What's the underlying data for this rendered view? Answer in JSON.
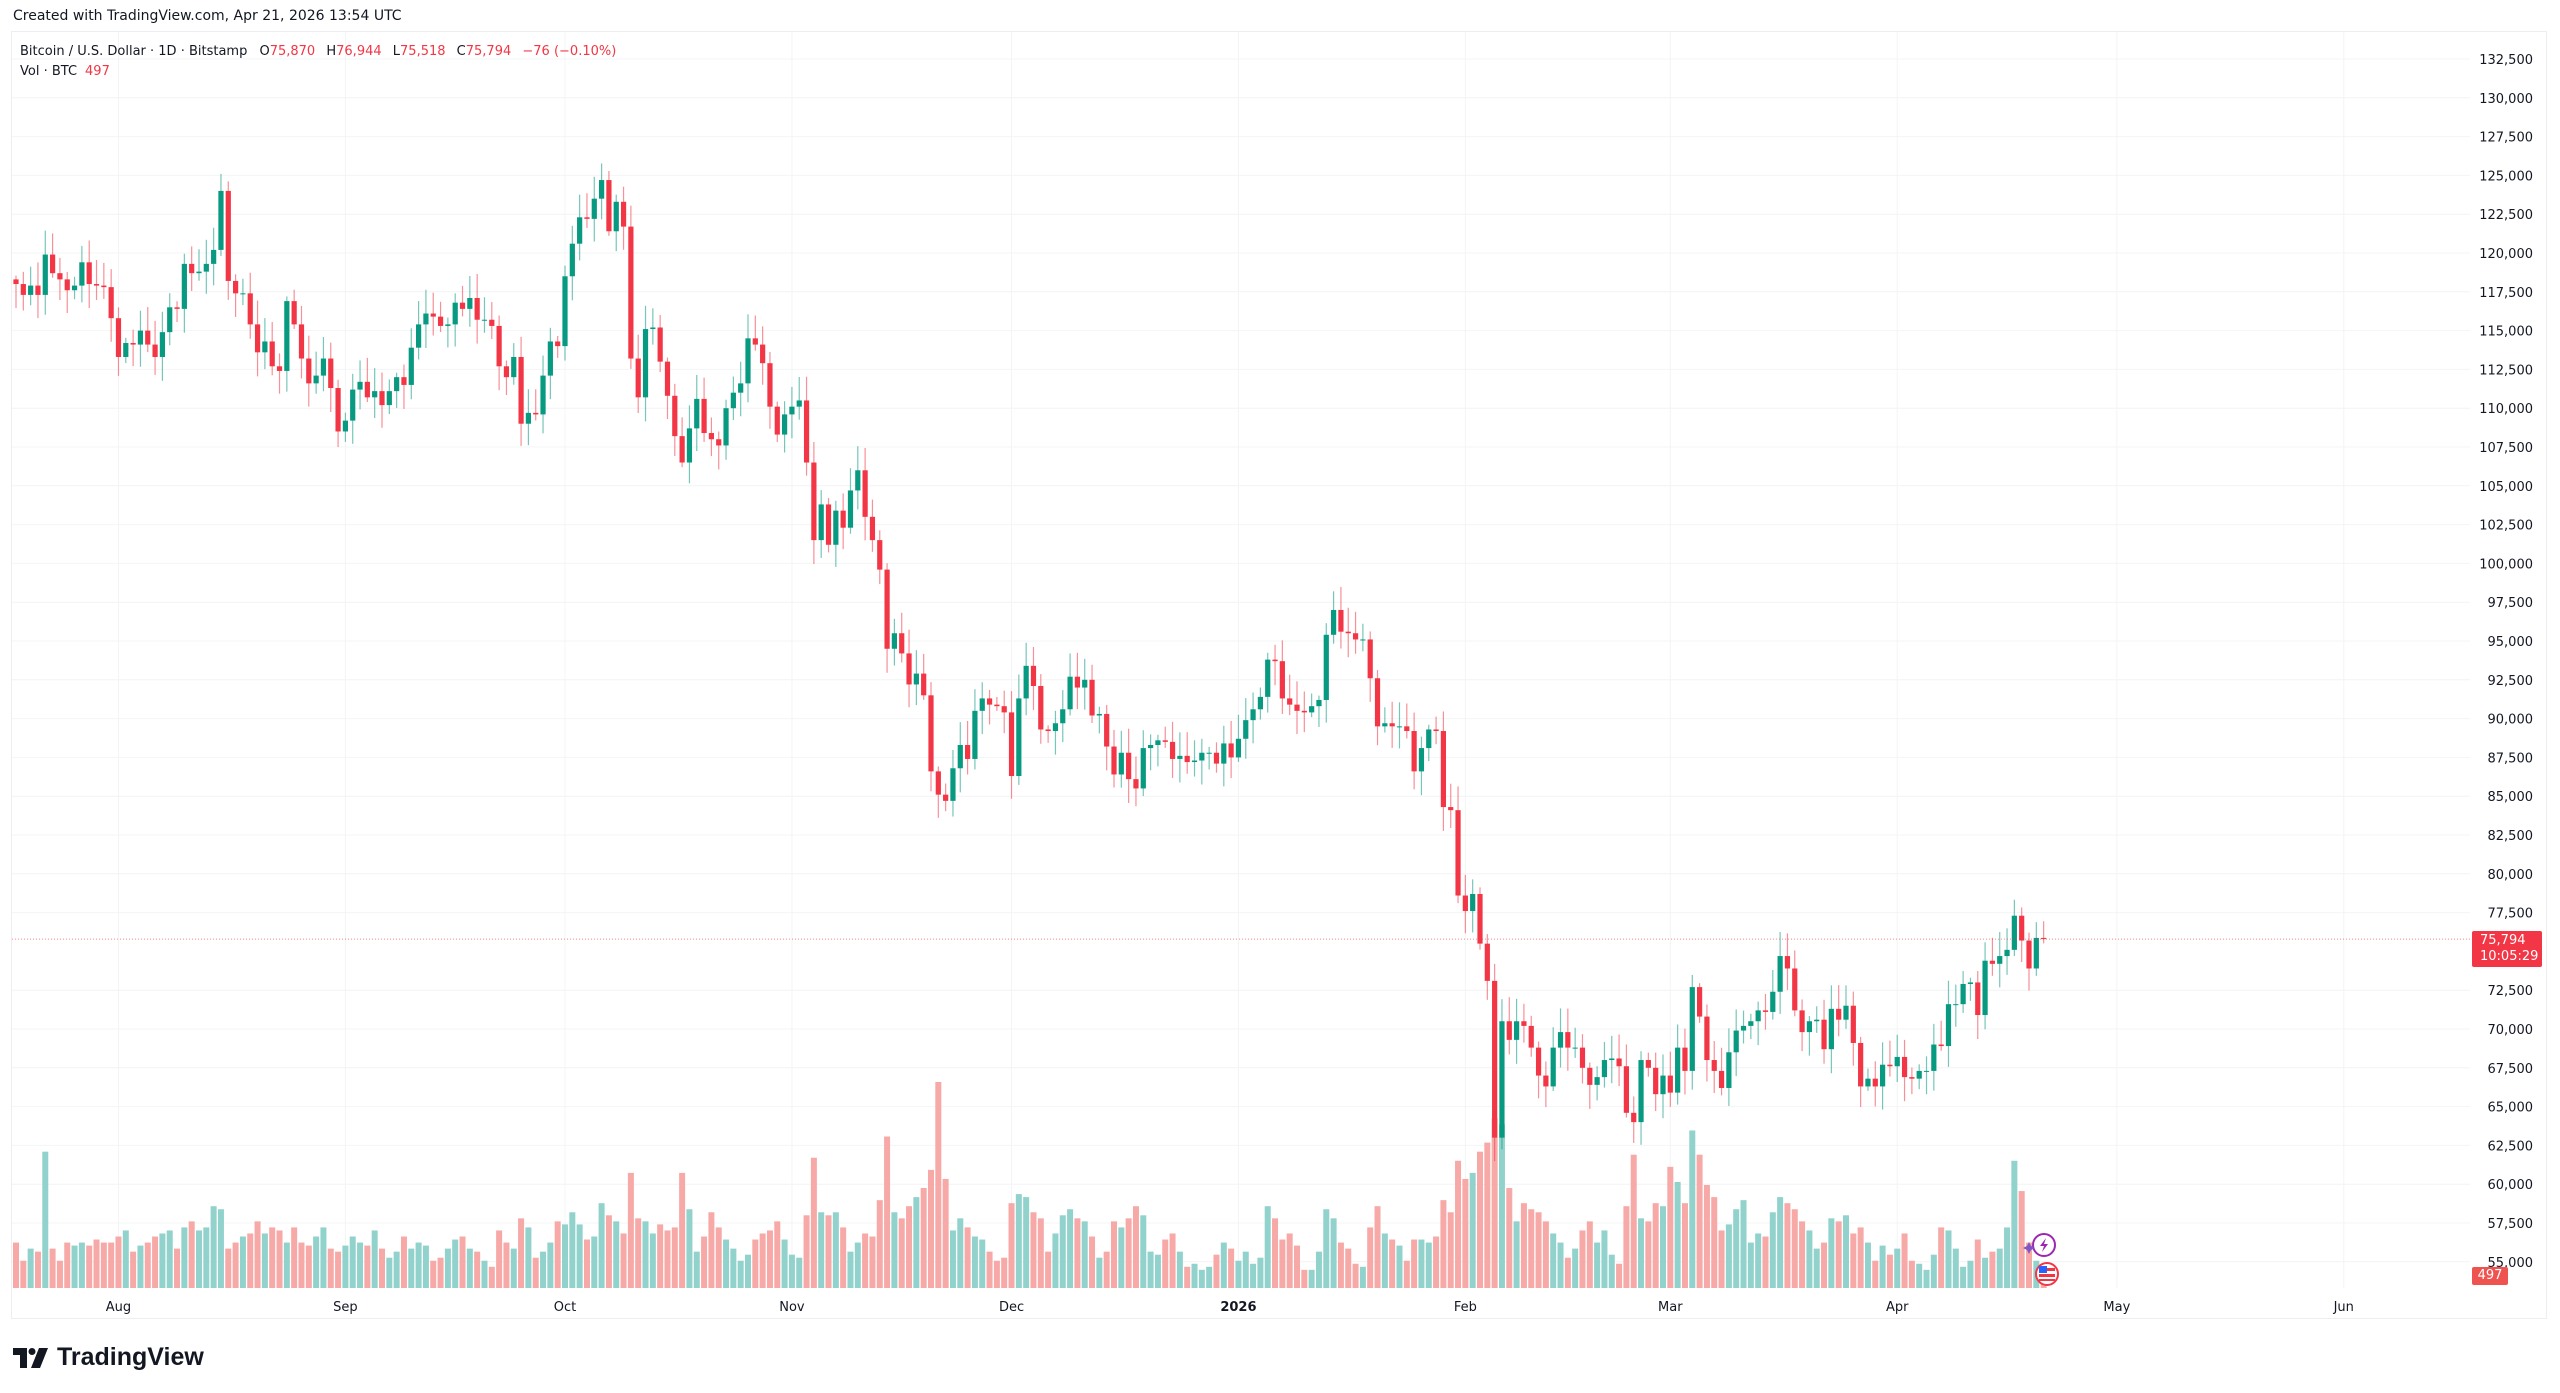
{
  "header": {
    "created": "Created with TradingView.com, Apr 21, 2026 13:54 UTC"
  },
  "legend": {
    "symbol": "Bitcoin / U.S. Dollar · 1D · Bitstamp",
    "open_label": "O",
    "open": "75,870",
    "high_label": "H",
    "high": "76,944",
    "low_label": "L",
    "low": "75,518",
    "close_label": "C",
    "close": "75,794",
    "change": "−76 (−0.10%)",
    "volume_label": "Vol · BTC",
    "volume": "497"
  },
  "price_tag": {
    "price": "75,794",
    "countdown": "10:05:29"
  },
  "volume_tag": "497",
  "logo": {
    "text": "TradingView"
  },
  "colors": {
    "up": "#089981",
    "down": "#f23645",
    "volume_up": "#92d2cc",
    "volume_down": "#f7a9a7",
    "grid": "#f3f4f6",
    "price_line": "#f23645"
  },
  "icons": [
    "lightning-event-icon",
    "us-flag-event-icon"
  ],
  "chart_data": {
    "type": "candlestick",
    "interval": "1D",
    "first_date": "2025-07-18",
    "price_range": [
      53000,
      133500
    ],
    "price_ticks": [
      "132,500",
      "130,000",
      "127,500",
      "125,000",
      "122,500",
      "120,000",
      "117,500",
      "115,000",
      "112,500",
      "110,000",
      "107,500",
      "105,000",
      "102,500",
      "100,000",
      "97,500",
      "95,000",
      "92,500",
      "90,000",
      "87,500",
      "85,000",
      "82,500",
      "80,000",
      "77,500",
      "72,500",
      "70,000",
      "67,500",
      "65,000",
      "62,500",
      "60,000",
      "57,500",
      "55,000"
    ],
    "time_ticks": [
      {
        "label": "Aug",
        "date": "2025-08-01"
      },
      {
        "label": "Sep",
        "date": "2025-09-01"
      },
      {
        "label": "Oct",
        "date": "2025-10-01"
      },
      {
        "label": "Nov",
        "date": "2025-11-01"
      },
      {
        "label": "Dec",
        "date": "2025-12-01"
      },
      {
        "label": "2026",
        "date": "2026-01-01"
      },
      {
        "label": "Feb",
        "date": "2026-02-01"
      },
      {
        "label": "Mar",
        "date": "2026-03-01"
      },
      {
        "label": "Apr",
        "date": "2026-04-01"
      },
      {
        "label": "May",
        "date": "2026-05-01"
      },
      {
        "label": "Jun",
        "date": "2026-06-01"
      }
    ],
    "last_candle": {
      "open": 75870,
      "high": 76944,
      "low": 75518,
      "close": 75794,
      "volume": 497
    },
    "close": [
      118000,
      117300,
      117900,
      117300,
      119900,
      118700,
      118300,
      117600,
      117900,
      119400,
      118000,
      117900,
      117800,
      115800,
      113300,
      114200,
      114100,
      115000,
      114100,
      113300,
      114900,
      116500,
      116400,
      119300,
      118700,
      118800,
      119300,
      120200,
      124000,
      118200,
      117400,
      117400,
      115400,
      113600,
      114300,
      112700,
      112400,
      116900,
      115400,
      113200,
      111600,
      112100,
      113200,
      111300,
      108500,
      109200,
      111200,
      111700,
      110700,
      111100,
      110200,
      111100,
      112000,
      111500,
      113900,
      115400,
      116100,
      115900,
      115300,
      115400,
      116800,
      116400,
      117100,
      115700,
      115700,
      115300,
      112700,
      112000,
      113300,
      109000,
      109700,
      109600,
      112100,
      114300,
      114000,
      118500,
      120600,
      122300,
      122200,
      123500,
      124700,
      121400,
      123300,
      121700,
      113200,
      110700,
      115100,
      115200,
      113000,
      110800,
      108200,
      106500,
      108700,
      110600,
      108400,
      108000,
      107600,
      110000,
      111000,
      111600,
      114500,
      114100,
      112900,
      110100,
      108300,
      109600,
      110100,
      110500,
      106500,
      101500,
      103800,
      101200,
      103400,
      102300,
      104700,
      106000,
      103000,
      101500,
      99600,
      94500,
      95500,
      94200,
      92200,
      92900,
      91500,
      86600,
      85100,
      84700,
      86800,
      88300,
      87400,
      90500,
      91300,
      90900,
      90800,
      90400,
      86300,
      91300,
      93400,
      92100,
      89300,
      89200,
      89700,
      90600,
      92700,
      92000,
      92500,
      90200,
      90300,
      88200,
      86400,
      87800,
      86100,
      85500,
      88100,
      88300,
      88600,
      88500,
      87400,
      87600,
      87200,
      87300,
      87800,
      87800,
      87100,
      88400,
      87500,
      88700,
      89900,
      90600,
      91400,
      93800,
      93700,
      91300,
      90900,
      90500,
      90400,
      90800,
      91200,
      95400,
      97000,
      95600,
      95500,
      95100,
      95100,
      92600,
      89500,
      89700,
      89500,
      89500,
      89200,
      86600,
      88100,
      89300,
      89200,
      84300,
      84100,
      78600,
      77600,
      78700,
      75500,
      73100,
      63000,
      70500,
      69300,
      70500,
      70200,
      68800,
      67000,
      66300,
      68800,
      69800,
      68800,
      68800,
      67500,
      66400,
      66900,
      68000,
      68100,
      67600,
      64600,
      64000,
      68000,
      67500,
      65800,
      67000,
      65900,
      68800,
      67300,
      72700,
      70800,
      68000,
      67300,
      66200,
      68500,
      69900,
      70200,
      70500,
      71200,
      71100,
      72400,
      74700,
      73900,
      71200,
      69800,
      70500,
      70600,
      68700,
      71300,
      70600,
      71500,
      69100,
      66300,
      66800,
      66300,
      67700,
      67600,
      68200,
      66900,
      66800,
      67300,
      67300,
      69000,
      68900,
      71600,
      71600,
      72900,
      73000,
      70900,
      74400,
      74200,
      74700,
      75100,
      77300,
      75700,
      73900,
      75870,
      75794
    ],
    "volume": [
      1500,
      900,
      1300,
      1200,
      4500,
      1300,
      900,
      1500,
      1400,
      1500,
      1400,
      1600,
      1500,
      1500,
      1700,
      1900,
      1200,
      1400,
      1500,
      1700,
      1800,
      1900,
      1300,
      2000,
      2200,
      1900,
      2000,
      2700,
      2600,
      1300,
      1500,
      1700,
      1800,
      2200,
      1800,
      2000,
      1900,
      1500,
      2000,
      1500,
      1400,
      1700,
      2000,
      1300,
      1200,
      1400,
      1700,
      1500,
      1400,
      1900,
      1300,
      1000,
      1200,
      1700,
      1300,
      1500,
      1400,
      900,
      1000,
      1300,
      1600,
      1700,
      1300,
      1200,
      900,
      700,
      1900,
      1500,
      1300,
      2300,
      2000,
      1000,
      1200,
      1500,
      2200,
      2100,
      2500,
      2100,
      1600,
      1700,
      2800,
      2400,
      2200,
      1800,
      3800,
      2300,
      2200,
      1800,
      2100,
      1900,
      2000,
      3800,
      2600,
      1200,
      1700,
      2500,
      2000,
      1600,
      1300,
      900,
      1100,
      1600,
      1800,
      1900,
      2200,
      1600,
      1100,
      1000,
      2400,
      4300,
      2500,
      2400,
      2500,
      2000,
      1200,
      1500,
      1800,
      1700,
      2900,
      5000,
      2500,
      2300,
      2700,
      3000,
      3300,
      3900,
      6800,
      3600,
      1900,
      2300,
      2000,
      1700,
      1600,
      1200,
      900,
      1000,
      2800,
      3100,
      3000,
      2500,
      2300,
      1200,
      1800,
      2400,
      2600,
      2300,
      2200,
      1700,
      1000,
      1200,
      2200,
      2000,
      2300,
      2700,
      2400,
      1200,
      1100,
      1600,
      1800,
      1200,
      700,
      800,
      600,
      700,
      1100,
      1500,
      1300,
      900,
      1200,
      800,
      1000,
      2700,
      2300,
      1600,
      1800,
      1400,
      600,
      600,
      1200,
      2600,
      2300,
      1500,
      1300,
      800,
      700,
      2000,
      2700,
      1800,
      1600,
      1400,
      900,
      1600,
      1600,
      1500,
      1700,
      2900,
      2500,
      4200,
      3600,
      3800,
      4500,
      4800,
      5600,
      5400,
      3300,
      2200,
      2800,
      2600,
      2500,
      2200,
      1800,
      1500,
      1000,
      1300,
      1900,
      2200,
      1500,
      1900,
      1100,
      800,
      2700,
      4400,
      2300,
      2200,
      2800,
      2700,
      4000,
      3500,
      2800,
      5200,
      4400,
      3400,
      3000,
      1900,
      2100,
      2600,
      2900,
      1500,
      1800,
      1700,
      2500,
      3000,
      2800,
      2600,
      2200,
      1900,
      1300,
      1500,
      2300,
      2200,
      2400,
      1800,
      2000,
      1500,
      900,
      1400,
      1100,
      1300,
      1800,
      900,
      800,
      600,
      1100,
      2000,
      1900,
      1300,
      700,
      900,
      1600,
      1000,
      1200,
      1300,
      2000,
      4200,
      3200,
      1500,
      900,
      497
    ]
  }
}
